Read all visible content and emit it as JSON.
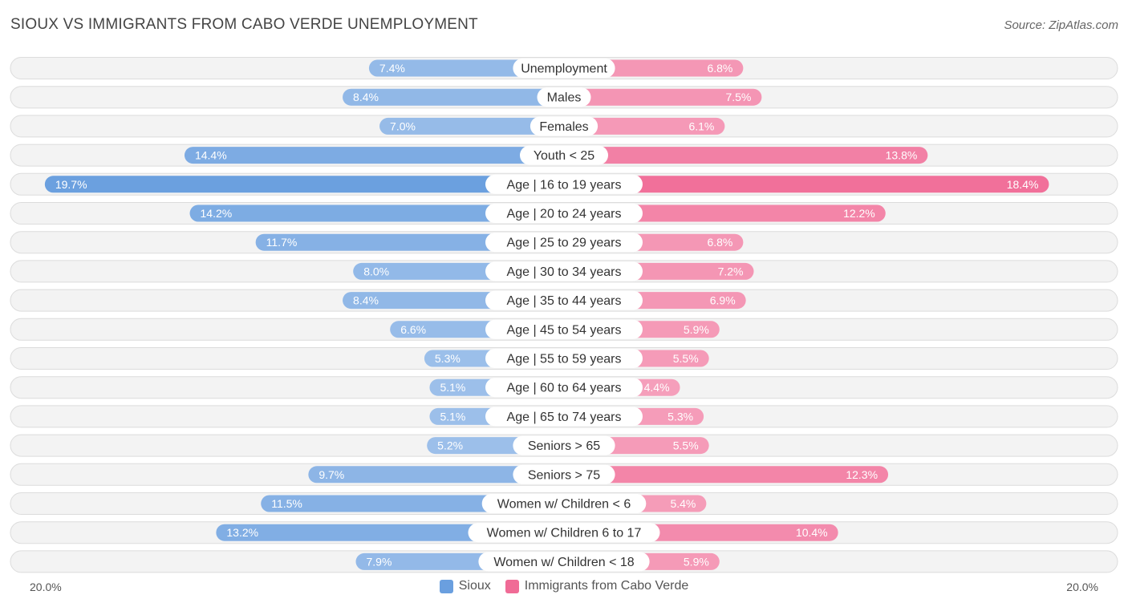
{
  "title": "SIOUX VS IMMIGRANTS FROM CABO VERDE UNEMPLOYMENT",
  "source": "Source: ZipAtlas.com",
  "colors": {
    "sioux": "#6a9fdf",
    "cabo_verde": "#f06b96"
  },
  "chart_data": {
    "type": "bar",
    "orientation": "horizontal-diverging",
    "title": "SIOUX VS IMMIGRANTS FROM CABO VERDE UNEMPLOYMENT",
    "categories": [
      "Unemployment",
      "Males",
      "Females",
      "Youth < 25",
      "Age | 16 to 19 years",
      "Age | 20 to 24 years",
      "Age | 25 to 29 years",
      "Age | 30 to 34 years",
      "Age | 35 to 44 years",
      "Age | 45 to 54 years",
      "Age | 55 to 59 years",
      "Age | 60 to 64 years",
      "Age | 65 to 74 years",
      "Seniors > 65",
      "Seniors > 75",
      "Women w/ Children < 6",
      "Women w/ Children 6 to 17",
      "Women w/ Children < 18"
    ],
    "series": [
      {
        "name": "Sioux",
        "side": "left",
        "values": [
          7.4,
          8.4,
          7.0,
          14.4,
          19.7,
          14.2,
          11.7,
          8.0,
          8.4,
          6.6,
          5.3,
          5.1,
          5.1,
          5.2,
          9.7,
          11.5,
          13.2,
          7.9
        ],
        "labels": [
          "7.4%",
          "8.4%",
          "7.0%",
          "14.4%",
          "19.7%",
          "14.2%",
          "11.7%",
          "8.0%",
          "8.4%",
          "6.6%",
          "5.3%",
          "5.1%",
          "5.1%",
          "5.2%",
          "9.7%",
          "11.5%",
          "13.2%",
          "7.9%"
        ]
      },
      {
        "name": "Immigrants from Cabo Verde",
        "side": "right",
        "values": [
          6.8,
          7.5,
          6.1,
          13.8,
          18.4,
          12.2,
          6.8,
          7.2,
          6.9,
          5.9,
          5.5,
          4.4,
          5.3,
          5.5,
          12.3,
          5.4,
          10.4,
          5.9
        ],
        "labels": [
          "6.8%",
          "7.5%",
          "6.1%",
          "13.8%",
          "18.4%",
          "12.2%",
          "6.8%",
          "7.2%",
          "6.9%",
          "5.9%",
          "5.5%",
          "4.4%",
          "5.3%",
          "5.5%",
          "12.3%",
          "5.4%",
          "10.4%",
          "5.9%"
        ]
      }
    ],
    "xlim": [
      0,
      20.0
    ],
    "axis_left_label": "20.0%",
    "axis_right_label": "20.0%",
    "legend_position": "bottom-center"
  },
  "legend": {
    "sioux_label": "Sioux",
    "cabo_verde_label": "Immigrants from Cabo Verde"
  }
}
